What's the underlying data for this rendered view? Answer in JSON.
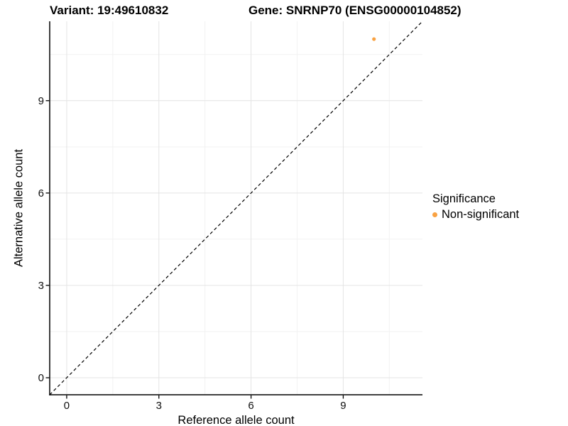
{
  "header": {
    "title_variant": "Variant: 19:49610832",
    "title_gene": "Gene: SNRNP70 (ENSG00000104852)"
  },
  "chart_data": {
    "type": "scatter",
    "xlabel": "Reference allele count",
    "ylabel": "Alternative allele count",
    "xlim": [
      -0.553,
      11.578
    ],
    "ylim": [
      -0.553,
      11.578
    ],
    "xticks": [
      0,
      3,
      6,
      9
    ],
    "yticks": [
      0,
      3,
      6,
      9
    ],
    "minor_ticks": [
      1.5,
      4.5,
      7.5,
      10.5
    ],
    "grid": true,
    "points": [
      {
        "x": 10,
        "y": 11,
        "series": "Non-significant"
      }
    ],
    "identity_line": {
      "type": "dashed",
      "slope": 1,
      "intercept": 0
    },
    "legend": {
      "title": "Significance",
      "position": "right",
      "items": [
        {
          "label": "Non-significant",
          "color": "#F9A242"
        }
      ]
    },
    "colors": {
      "point": "#F9A242",
      "axis": "#000000",
      "grid_major": "#E4E4E4",
      "grid_minor": "#F2F2F2",
      "dashed_line": "#000000"
    }
  }
}
